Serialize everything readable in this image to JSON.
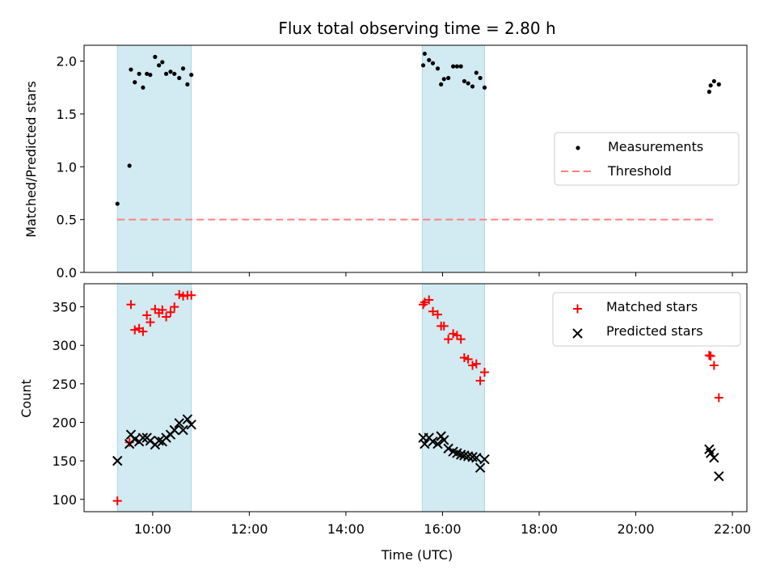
{
  "chart_data": {
    "title": "Flux total observing time = 2.80 h",
    "xlabel": "Time (UTC)",
    "x_tick_labels": [
      "10:00",
      "12:00",
      "14:00",
      "16:00",
      "18:00",
      "20:00",
      "22:00"
    ],
    "x_ticks_hours": [
      10,
      12,
      14,
      16,
      18,
      20,
      22
    ],
    "xlim_hours": [
      8.58,
      22.3
    ],
    "observing_windows_hours": [
      [
        9.27,
        10.8
      ],
      [
        15.58,
        16.87
      ]
    ],
    "colors": {
      "window": "#add8e6",
      "measurements": "#000000",
      "threshold": "#ff8080",
      "matched": "#ff0000",
      "predicted": "#000000"
    },
    "panels": [
      {
        "type": "scatter",
        "ylabel": "Matched/Predicted stars",
        "ylim": [
          0,
          2.15
        ],
        "y_ticks": [
          0.0,
          0.5,
          1.0,
          1.5,
          2.0
        ],
        "y_tick_labels": [
          "0.0",
          "0.5",
          "1.0",
          "1.5",
          "2.0"
        ],
        "legend": {
          "placement": "center-right",
          "entries": [
            "Measurements",
            "Threshold"
          ]
        },
        "threshold": {
          "name": "Threshold",
          "y": 0.5,
          "x_range_hours": [
            9.27,
            21.62
          ]
        },
        "series": [
          {
            "name": "Measurements",
            "marker": "dot",
            "x": [
              9.27,
              9.52,
              9.55,
              9.63,
              9.72,
              9.8,
              9.88,
              9.95,
              10.05,
              10.13,
              10.2,
              10.28,
              10.37,
              10.45,
              10.55,
              10.63,
              10.72,
              10.8,
              15.6,
              15.63,
              15.72,
              15.8,
              15.9,
              15.97,
              16.03,
              16.12,
              16.22,
              16.3,
              16.38,
              16.45,
              16.53,
              16.62,
              16.7,
              16.78,
              16.87,
              21.52,
              21.55,
              21.62,
              21.72
            ],
            "y": [
              0.65,
              1.01,
              1.92,
              1.8,
              1.88,
              1.75,
              1.88,
              1.87,
              2.04,
              1.96,
              1.99,
              1.88,
              1.9,
              1.88,
              1.84,
              1.93,
              1.78,
              1.87,
              1.96,
              2.07,
              2.01,
              1.98,
              1.93,
              1.78,
              1.83,
              1.84,
              1.95,
              1.95,
              1.95,
              1.81,
              1.79,
              1.76,
              1.89,
              1.84,
              1.75,
              1.71,
              1.77,
              1.81,
              1.78
            ]
          }
        ]
      },
      {
        "type": "scatter",
        "ylabel": "Count",
        "ylim": [
          84,
          380
        ],
        "y_ticks": [
          100,
          150,
          200,
          250,
          300,
          350
        ],
        "y_tick_labels": [
          "100",
          "150",
          "200",
          "250",
          "300",
          "350"
        ],
        "legend": {
          "placement": "top-right",
          "entries": [
            "Matched stars",
            "Predicted stars"
          ]
        },
        "series": [
          {
            "name": "Matched stars",
            "marker": "plus",
            "x": [
              9.27,
              9.52,
              9.55,
              9.63,
              9.72,
              9.8,
              9.88,
              9.95,
              10.05,
              10.13,
              10.2,
              10.28,
              10.37,
              10.45,
              10.55,
              10.63,
              10.72,
              10.8,
              15.6,
              15.63,
              15.72,
              15.8,
              15.9,
              15.97,
              16.03,
              16.12,
              16.22,
              16.3,
              16.38,
              16.45,
              16.53,
              16.62,
              16.7,
              16.78,
              16.87,
              21.52,
              21.55,
              21.62,
              21.72
            ],
            "y": [
              98,
              174,
              353,
              320,
              322,
              318,
              339,
              330,
              347,
              342,
              346,
              337,
              343,
              350,
              366,
              364,
              365,
              365,
              353,
              356,
              359,
              344,
              340,
              325,
              325,
              308,
              315,
              313,
              308,
              284,
              282,
              274,
              276,
              254,
              265,
              287,
              286,
              274,
              232
            ]
          },
          {
            "name": "Predicted stars",
            "marker": "x",
            "x": [
              9.27,
              9.52,
              9.55,
              9.63,
              9.72,
              9.8,
              9.88,
              9.95,
              10.05,
              10.13,
              10.2,
              10.28,
              10.37,
              10.45,
              10.55,
              10.63,
              10.72,
              10.8,
              15.6,
              15.63,
              15.72,
              15.8,
              15.9,
              15.97,
              16.03,
              16.12,
              16.22,
              16.3,
              16.38,
              16.45,
              16.53,
              16.62,
              16.7,
              16.78,
              16.87,
              21.52,
              21.55,
              21.62,
              21.72
            ],
            "y": [
              150,
              172,
              184,
              178,
              175,
              180,
              180,
              176,
              171,
              176,
              175,
              180,
              184,
              190,
              199,
              190,
              204,
              197,
              180,
              172,
              180,
              175,
              172,
              182,
              177,
              166,
              162,
              160,
              158,
              157,
              156,
              155,
              154,
              141,
              152,
              165,
              160,
              154,
              130
            ]
          }
        ]
      }
    ]
  }
}
